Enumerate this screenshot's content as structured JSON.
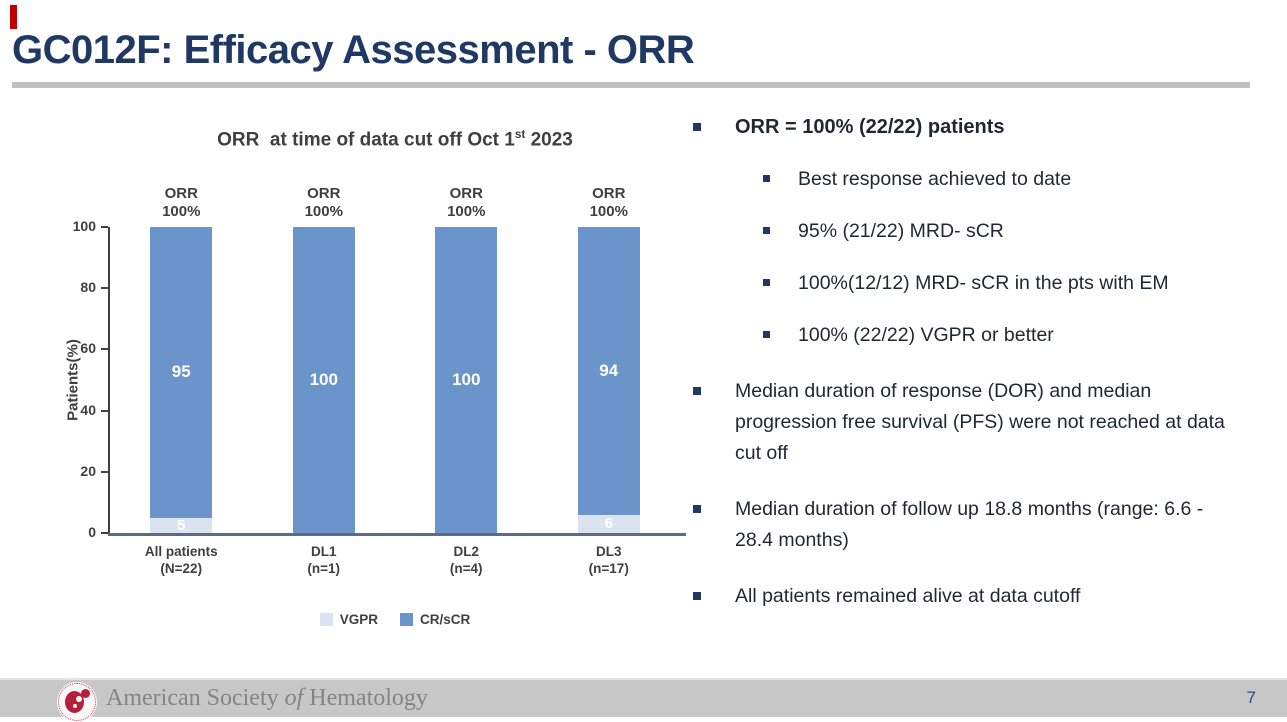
{
  "slide": {
    "title": "GC012F: Efficacy Assessment - ORR",
    "page_number": "7"
  },
  "colors": {
    "accent": "#C00000",
    "title": "#1F3864",
    "footer-bg": "#C7C7C7",
    "axis": "#404040",
    "xaxis": "#5A6B85"
  },
  "chart_data": {
    "type": "bar",
    "stacked": true,
    "title": "ORR at time of data cut off Oct 1st 2023",
    "title_parts": {
      "before": "ORR  at time of data cut off Oct 1",
      "sup": "st",
      "after": " 2023"
    },
    "ylabel": "Patients(%)",
    "ylim": [
      0,
      100
    ],
    "yticks": [
      0,
      20,
      40,
      60,
      80,
      100
    ],
    "grid": false,
    "legend_position": "bottom",
    "categories": [
      [
        "All patients",
        "(N=22)"
      ],
      [
        "DL1",
        "(n=1)"
      ],
      [
        "DL2",
        "(n=4)"
      ],
      [
        "DL3",
        "(n=17)"
      ]
    ],
    "bar_top_labels": [
      [
        "ORR",
        "100%"
      ],
      [
        "ORR",
        "100%"
      ],
      [
        "ORR",
        "100%"
      ],
      [
        "ORR",
        "100%"
      ]
    ],
    "series": [
      {
        "name": "VGPR",
        "color": "#DCE3F0",
        "values": [
          5,
          0,
          0,
          6
        ]
      },
      {
        "name": "CR/sCR",
        "color": "#6B94CA",
        "values": [
          95,
          100,
          100,
          94
        ]
      }
    ]
  },
  "bullets": [
    {
      "level": 1,
      "bold": true,
      "text": "ORR = 100% (22/22) patients"
    },
    {
      "level": 2,
      "bold": false,
      "text": "Best response achieved to date"
    },
    {
      "level": 2,
      "bold": false,
      "text": "95% (21/22) MRD- sCR"
    },
    {
      "level": 2,
      "bold": false,
      "text": "100%(12/12) MRD- sCR in the pts with EM"
    },
    {
      "level": 2,
      "bold": false,
      "text": "100% (22/22) VGPR or better"
    },
    {
      "level": 1,
      "bold": false,
      "text": "Median duration of response (DOR) and median progression free survival (PFS) were not reached at data cut off"
    },
    {
      "level": 1,
      "bold": false,
      "text": "Median duration of follow up 18.8 months (range: 6.6 - 28.4 months)"
    },
    {
      "level": 1,
      "bold": false,
      "text": "All patients remained alive at data cutoff"
    }
  ],
  "footer": {
    "org_part1": "American Society ",
    "org_italic": "of",
    "org_part2": " Hematology"
  }
}
